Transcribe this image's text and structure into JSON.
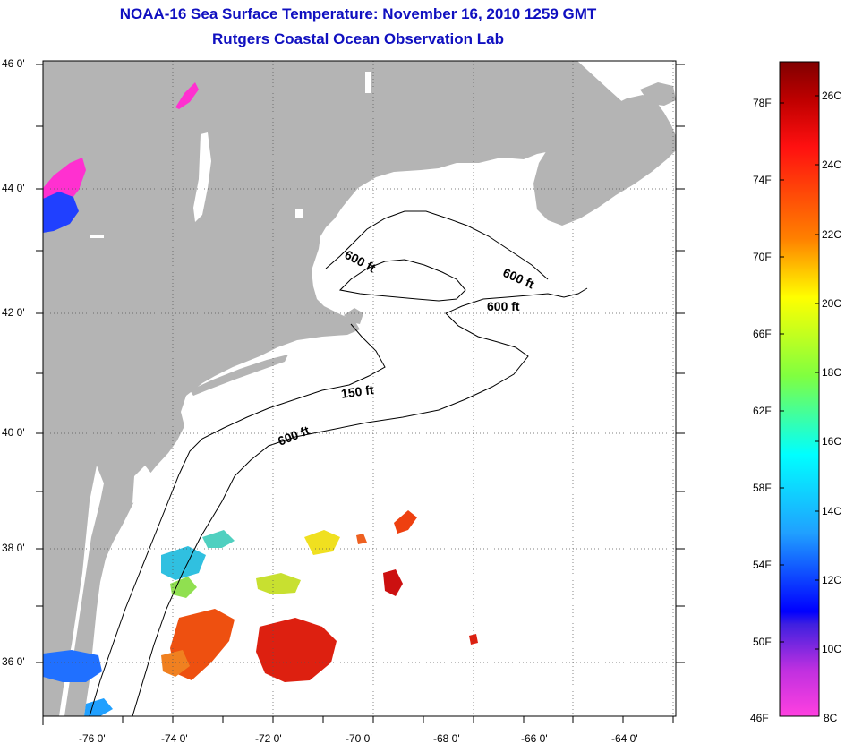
{
  "header": {
    "title": "NOAA-16 Sea Surface Temperature:  November 16, 2010 1259 GMT",
    "subtitle": "Rutgers Coastal Ocean Observation Lab"
  },
  "map": {
    "lat_ticks": [
      "46 0'",
      "44 0'",
      "42 0'",
      "40 0'",
      "38 0'",
      "36 0'"
    ],
    "lon_ticks": [
      "-76 0'",
      "-74 0'",
      "-72 0'",
      "-70 0'",
      "-68 0'",
      "-66 0'",
      "-64 0'"
    ],
    "contour_labels": [
      "600 ft",
      "600 ft",
      "600 ft",
      "150 ft",
      "600 ft"
    ],
    "colors": {
      "land": "#b4b4b4",
      "ocean": "#ffffff",
      "grid": "#555555",
      "title": "#1010c0"
    }
  },
  "colorbar": {
    "fahrenheit_labels": [
      "78F",
      "74F",
      "70F",
      "66F",
      "62F",
      "58F",
      "54F",
      "50F",
      "46F"
    ],
    "celsius_labels": [
      "26C",
      "24C",
      "22C",
      "20C",
      "18C",
      "16C",
      "14C",
      "12C",
      "10C",
      "8C"
    ]
  }
}
